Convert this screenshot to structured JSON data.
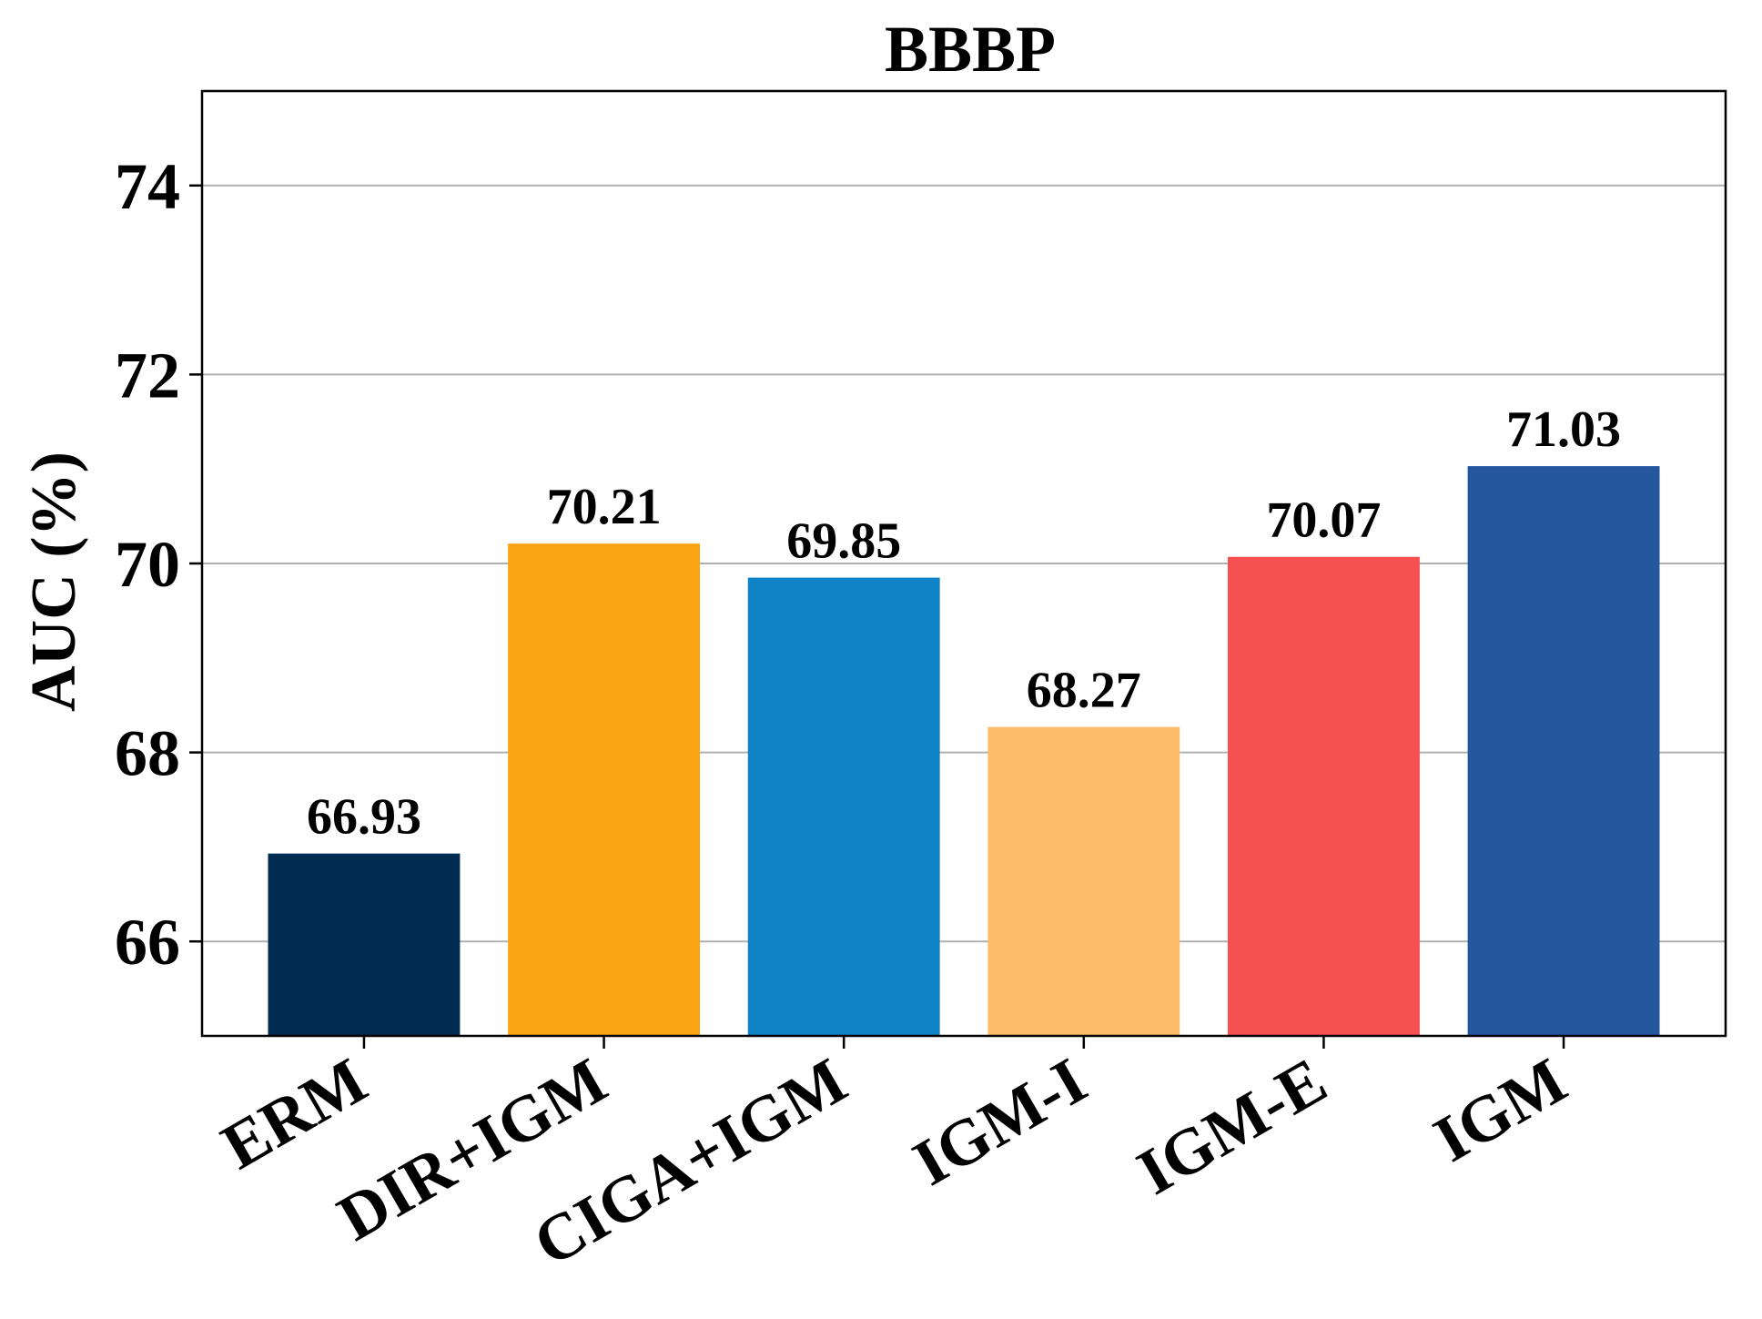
{
  "chart_data": {
    "type": "bar",
    "title": "BBBP",
    "xlabel": "",
    "ylabel": "AUC (%)",
    "categories": [
      "ERM",
      "DIR+IGM",
      "CIGA+IGM",
      "IGM-I",
      "IGM-E",
      "IGM"
    ],
    "values": [
      66.93,
      70.21,
      69.85,
      68.27,
      70.07,
      71.03
    ],
    "value_labels": [
      "66.93",
      "70.21",
      "69.85",
      "68.27",
      "70.07",
      "71.03"
    ],
    "colors": [
      "#022B51",
      "#FBA413",
      "#0E82C5",
      "#FDBD68",
      "#F75050",
      "#25579F"
    ],
    "ylim": [
      65,
      75
    ],
    "yticks": [
      66,
      68,
      70,
      72,
      74
    ],
    "ytick_labels": [
      "66",
      "68",
      "70",
      "72",
      "74"
    ],
    "grid": "y",
    "legend": "none"
  }
}
